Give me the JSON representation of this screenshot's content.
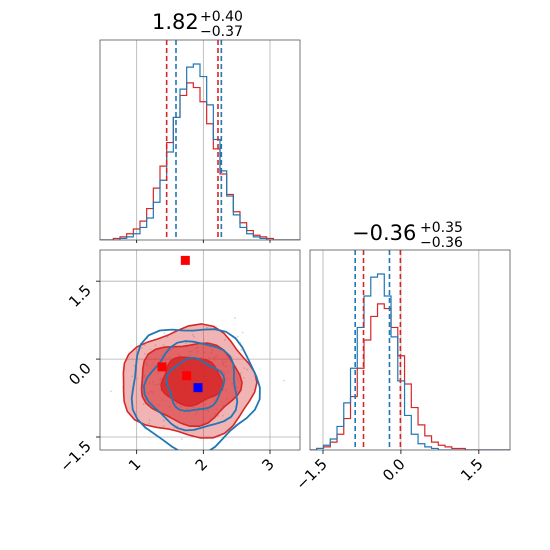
{
  "chart_data": {
    "type": "corner",
    "grid": true,
    "colors": {
      "red": "#d62728",
      "blue": "#1f77b4",
      "fill_red": "#d62728",
      "scatter": "#bbbbbb",
      "marker_blue": "#0000ff",
      "marker_red": "#ff0000"
    },
    "titles": [
      {
        "median": "1.82",
        "plus": "+0.40",
        "minus": "−0.37"
      },
      {
        "median": "−0.36",
        "plus": "+0.35",
        "minus": "−0.36"
      }
    ],
    "params": [
      {
        "range": [
          0.45,
          3.45
        ],
        "ticks": [
          1,
          2,
          3
        ],
        "tick_labels": [
          "1",
          "2",
          "3"
        ]
      },
      {
        "range": [
          -1.75,
          2.1
        ],
        "ticks": [
          -1.5,
          0.0,
          1.5
        ],
        "tick_labels": [
          "−1.5",
          "0.0",
          "1.5"
        ]
      }
    ],
    "hist1_red": {
      "x": [
        0.45,
        0.55,
        0.65,
        0.75,
        0.85,
        0.95,
        1.05,
        1.15,
        1.25,
        1.35,
        1.45,
        1.55,
        1.65,
        1.75,
        1.85,
        1.95,
        2.05,
        2.15,
        2.25,
        2.35,
        2.45,
        2.55,
        2.65,
        2.75,
        2.85,
        2.95,
        3.05,
        3.15,
        3.25,
        3.35
      ],
      "values": [
        0,
        0,
        1,
        2,
        4,
        7,
        12,
        20,
        33,
        47,
        62,
        78,
        92,
        100,
        97,
        88,
        74,
        58,
        42,
        29,
        18,
        11,
        6,
        3,
        2,
        1,
        0,
        0,
        0,
        0
      ]
    },
    "hist1_blue": {
      "x": [
        0.45,
        0.55,
        0.65,
        0.75,
        0.85,
        0.95,
        1.05,
        1.15,
        1.25,
        1.35,
        1.45,
        1.55,
        1.65,
        1.75,
        1.85,
        1.95,
        2.05,
        2.15,
        2.25,
        2.35,
        2.45,
        2.55,
        2.65,
        2.75,
        2.85,
        2.95,
        3.05,
        3.15,
        3.25,
        3.35
      ],
      "values": [
        0,
        0,
        0,
        1,
        2,
        4,
        8,
        14,
        24,
        38,
        56,
        78,
        96,
        110,
        112,
        104,
        86,
        64,
        44,
        28,
        16,
        8,
        4,
        2,
        1,
        0,
        0,
        0,
        0,
        0
      ]
    },
    "hist1_red_quantiles": [
      1.45,
      1.82,
      2.22
    ],
    "hist1_blue_quantiles": [
      1.59,
      1.82,
      2.27
    ],
    "hist2_red": {
      "x": [
        -1.75,
        -1.62,
        -1.49,
        -1.36,
        -1.23,
        -1.1,
        -0.97,
        -0.84,
        -0.71,
        -0.58,
        -0.45,
        -0.32,
        -0.19,
        -0.06,
        0.07,
        0.2,
        0.33,
        0.46,
        0.59,
        0.72,
        0.85,
        0.98,
        1.11,
        1.24,
        1.37,
        1.5,
        1.63,
        1.76,
        1.89,
        2.02
      ],
      "values": [
        0,
        1,
        2,
        5,
        10,
        20,
        34,
        52,
        70,
        85,
        93,
        90,
        78,
        60,
        42,
        27,
        16,
        9,
        5,
        3,
        2,
        1,
        1,
        0,
        0,
        0,
        0,
        0,
        0,
        0
      ]
    },
    "hist2_blue": {
      "x": [
        -1.75,
        -1.62,
        -1.49,
        -1.36,
        -1.23,
        -1.1,
        -0.97,
        -0.84,
        -0.71,
        -0.58,
        -0.45,
        -0.32,
        -0.19,
        -0.06,
        0.07,
        0.2,
        0.33,
        0.46,
        0.59,
        0.72,
        0.85,
        0.98,
        1.11,
        1.24,
        1.37,
        1.5,
        1.63,
        1.76,
        1.89,
        2.02
      ],
      "values": [
        0,
        1,
        3,
        7,
        15,
        30,
        52,
        78,
        98,
        110,
        112,
        98,
        72,
        44,
        22,
        10,
        4,
        2,
        1,
        0,
        0,
        0,
        0,
        0,
        0,
        0,
        0,
        0,
        0,
        0
      ]
    },
    "hist2_red_quantiles": [
      -0.72,
      -0.36,
      -0.01
    ],
    "hist2_blue_quantiles": [
      -0.88,
      -0.36,
      -0.22
    ],
    "contour_red": {
      "levels": [
        {
          "cx": 1.78,
          "cy": -0.45,
          "rx": 1.0,
          "ry": 1.05
        },
        {
          "cx": 1.8,
          "cy": -0.45,
          "rx": 0.75,
          "ry": 0.78
        },
        {
          "cx": 1.82,
          "cy": -0.42,
          "rx": 0.45,
          "ry": 0.46
        }
      ]
    },
    "contour_blue": {
      "levels": [
        {
          "cx": 1.85,
          "cy": -0.55,
          "rx": 0.95,
          "ry": 1.2
        },
        {
          "cx": 1.85,
          "cy": -0.52,
          "rx": 0.68,
          "ry": 0.85
        },
        {
          "cx": 1.87,
          "cy": -0.5,
          "rx": 0.42,
          "ry": 0.5
        }
      ]
    },
    "markers": [
      {
        "x": 1.73,
        "y": 1.9,
        "color": "red"
      },
      {
        "x": 1.38,
        "y": -0.15,
        "color": "red"
      },
      {
        "x": 1.75,
        "y": -0.32,
        "color": "red"
      },
      {
        "x": 1.92,
        "y": -0.55,
        "color": "blue"
      }
    ]
  }
}
